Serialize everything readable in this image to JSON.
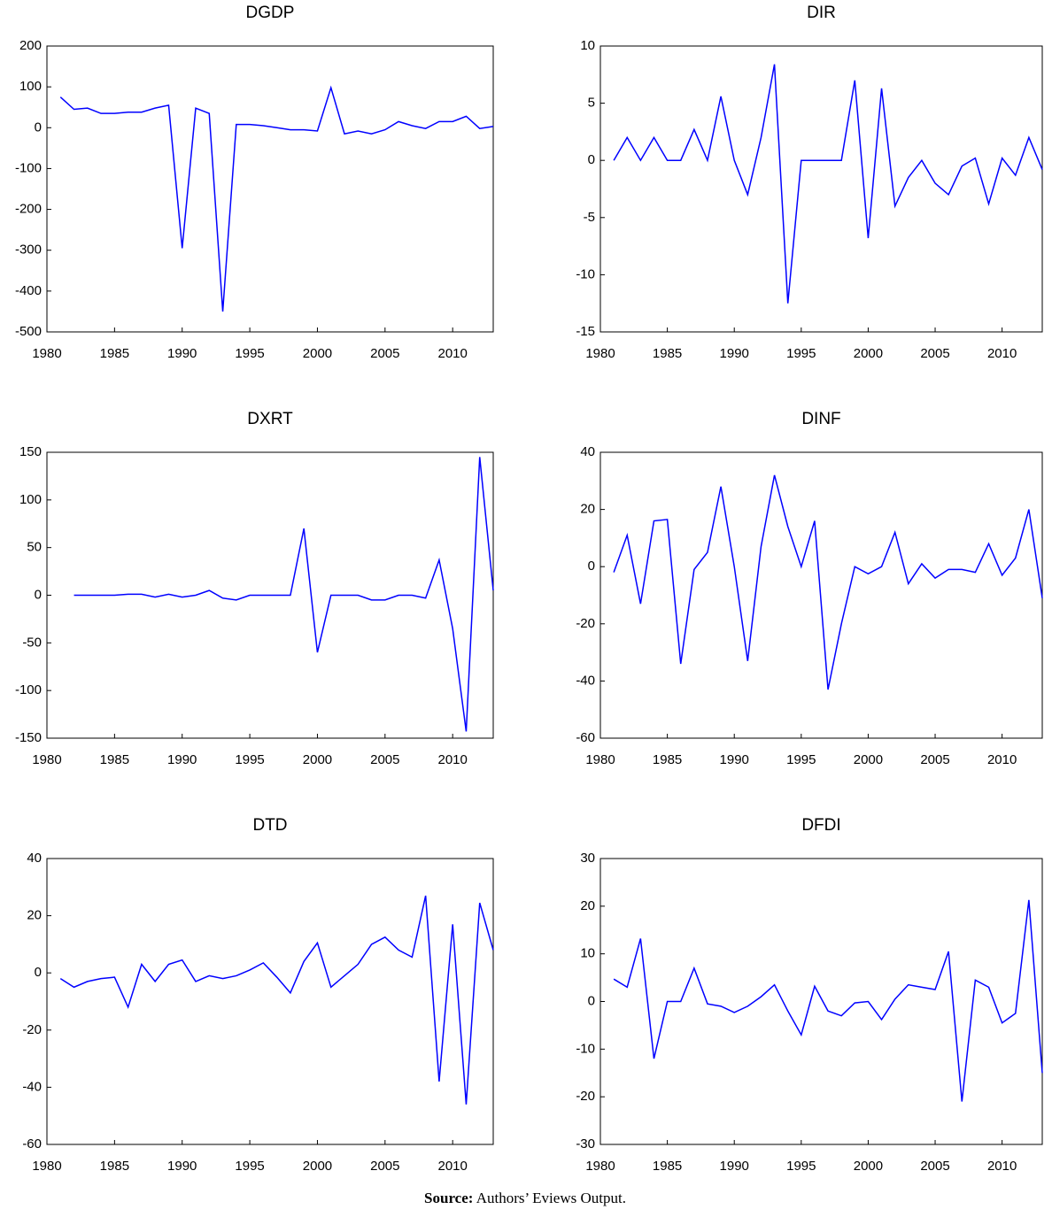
{
  "chart_data": [
    {
      "type": "line",
      "title": "DGDP",
      "color": "#0000ff",
      "x": [
        1981,
        1982,
        1983,
        1984,
        1985,
        1986,
        1987,
        1988,
        1989,
        1990,
        1991,
        1992,
        1993,
        1994,
        1995,
        1996,
        1997,
        1998,
        1999,
        2000,
        2001,
        2002,
        2003,
        2004,
        2005,
        2006,
        2007,
        2008,
        2009,
        2010,
        2011,
        2012,
        2013
      ],
      "values": [
        75,
        45,
        48,
        35,
        35,
        38,
        38,
        48,
        55,
        -295,
        48,
        35,
        -450,
        8,
        8,
        5,
        0,
        -5,
        -5,
        -8,
        98,
        -15,
        -8,
        -15,
        -5,
        15,
        5,
        -2,
        15,
        15,
        28,
        -2,
        3
      ],
      "xlim": [
        1980,
        2013
      ],
      "xticks": [
        1980,
        1985,
        1990,
        1995,
        2000,
        2005,
        2010
      ],
      "ylim": [
        -500,
        200
      ],
      "yticks": [
        -500,
        -400,
        -300,
        -200,
        -100,
        0,
        100,
        200
      ]
    },
    {
      "type": "line",
      "title": "DIR",
      "color": "#0000ff",
      "x": [
        1981,
        1982,
        1983,
        1984,
        1985,
        1986,
        1987,
        1988,
        1989,
        1990,
        1991,
        1992,
        1993,
        1994,
        1995,
        1996,
        1997,
        1998,
        1999,
        2000,
        2001,
        2002,
        2003,
        2004,
        2005,
        2006,
        2007,
        2008,
        2009,
        2010,
        2011,
        2012,
        2013
      ],
      "values": [
        0,
        2,
        0,
        2,
        0,
        0,
        2.7,
        0,
        5.6,
        0,
        -3,
        2,
        8.4,
        -12.5,
        0,
        0,
        0,
        0,
        7,
        -6.8,
        6.3,
        -4,
        -1.5,
        0,
        -2,
        -3,
        -0.5,
        0.2,
        -3.8,
        0.2,
        -1.3,
        2,
        -0.8
      ],
      "xlim": [
        1980,
        2013
      ],
      "xticks": [
        1980,
        1985,
        1990,
        1995,
        2000,
        2005,
        2010
      ],
      "ylim": [
        -15,
        10
      ],
      "yticks": [
        -15,
        -10,
        -5,
        0,
        5,
        10
      ]
    },
    {
      "type": "line",
      "title": "DXRT",
      "color": "#0000ff",
      "x": [
        1981,
        1982,
        1983,
        1984,
        1985,
        1986,
        1987,
        1988,
        1989,
        1990,
        1991,
        1992,
        1993,
        1994,
        1995,
        1996,
        1997,
        1998,
        1999,
        2000,
        2001,
        2002,
        2003,
        2004,
        2005,
        2006,
        2007,
        2008,
        2009,
        2010,
        2011,
        2012,
        2013
      ],
      "values": [
        null,
        0,
        0,
        0,
        0,
        1,
        1,
        -2,
        1,
        -2,
        0,
        5,
        -3,
        -5,
        0,
        0,
        0,
        0,
        70,
        -60,
        0,
        0,
        0,
        -5,
        -5,
        0,
        0,
        -3,
        37,
        -35,
        -143,
        145,
        5
      ],
      "xlim": [
        1980,
        2013
      ],
      "xticks": [
        1980,
        1985,
        1990,
        1995,
        2000,
        2005,
        2010
      ],
      "ylim": [
        -150,
        150
      ],
      "yticks": [
        -150,
        -100,
        -50,
        0,
        50,
        100,
        150
      ]
    },
    {
      "type": "line",
      "title": "DINF",
      "color": "#0000ff",
      "x": [
        1981,
        1982,
        1983,
        1984,
        1985,
        1986,
        1987,
        1988,
        1989,
        1990,
        1991,
        1992,
        1993,
        1994,
        1995,
        1996,
        1997,
        1998,
        1999,
        2000,
        2001,
        2002,
        2003,
        2004,
        2005,
        2006,
        2007,
        2008,
        2009,
        2010,
        2011,
        2012,
        2013
      ],
      "values": [
        -2,
        11,
        -13,
        16,
        16.5,
        -34,
        -1,
        5,
        28,
        0,
        -33,
        7,
        32,
        14,
        0,
        16,
        -43,
        -20,
        0,
        -2.5,
        0,
        12,
        -6,
        1,
        -4,
        -1,
        -1,
        -2,
        8,
        -3,
        3,
        20,
        -11
      ],
      "xlim": [
        1980,
        2013
      ],
      "xticks": [
        1980,
        1985,
        1990,
        1995,
        2000,
        2005,
        2010
      ],
      "ylim": [
        -60,
        40
      ],
      "yticks": [
        -60,
        -40,
        -20,
        0,
        20,
        40
      ]
    },
    {
      "type": "line",
      "title": "DTD",
      "color": "#0000ff",
      "x": [
        1981,
        1982,
        1983,
        1984,
        1985,
        1986,
        1987,
        1988,
        1989,
        1990,
        1991,
        1992,
        1993,
        1994,
        1995,
        1996,
        1997,
        1998,
        1999,
        2000,
        2001,
        2002,
        2003,
        2004,
        2005,
        2006,
        2007,
        2008,
        2009,
        2010,
        2011,
        2012,
        2013
      ],
      "values": [
        -2,
        -5,
        -3,
        -2,
        -1.5,
        -12,
        3,
        -3,
        3,
        4.5,
        -3,
        -1,
        -2,
        -1,
        1,
        3.5,
        -1.5,
        -7,
        4,
        10.5,
        -5,
        -1,
        3,
        10,
        12.5,
        8,
        5.5,
        27,
        -38,
        17,
        -46,
        24.5,
        8
      ],
      "xlim": [
        1980,
        2013
      ],
      "xticks": [
        1980,
        1985,
        1990,
        1995,
        2000,
        2005,
        2010
      ],
      "ylim": [
        -60,
        40
      ],
      "yticks": [
        -60,
        -40,
        -20,
        0,
        20,
        40
      ]
    },
    {
      "type": "line",
      "title": "DFDI",
      "color": "#0000ff",
      "x": [
        1981,
        1982,
        1983,
        1984,
        1985,
        1986,
        1987,
        1988,
        1989,
        1990,
        1991,
        1992,
        1993,
        1994,
        1995,
        1996,
        1997,
        1998,
        1999,
        2000,
        2001,
        2002,
        2003,
        2004,
        2005,
        2006,
        2007,
        2008,
        2009,
        2010,
        2011,
        2012,
        2013
      ],
      "values": [
        4.7,
        3,
        13.2,
        -12,
        0,
        0,
        7,
        -0.5,
        -1,
        -2.3,
        -1,
        1,
        3.5,
        -2,
        -7,
        3.2,
        -2,
        -3,
        -0.3,
        0,
        -3.8,
        0.5,
        3.5,
        3,
        2.5,
        10.5,
        -21,
        4.5,
        3,
        -4.5,
        -2.5,
        21.3,
        -15
      ],
      "xlim": [
        1980,
        2013
      ],
      "xticks": [
        1980,
        1985,
        1990,
        1995,
        2000,
        2005,
        2010
      ],
      "ylim": [
        -30,
        30
      ],
      "yticks": [
        -30,
        -20,
        -10,
        0,
        10,
        20,
        30
      ]
    }
  ],
  "source": {
    "label": "Source:",
    "text": "Authors’ Eviews Output."
  }
}
